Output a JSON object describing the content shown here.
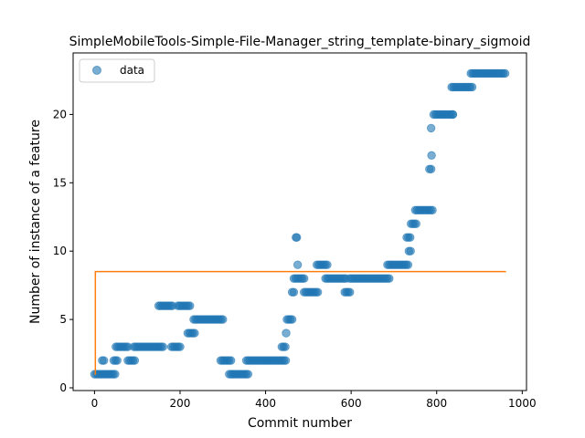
{
  "chart_data": {
    "type": "scatter",
    "title": "SimpleMobileTools-Simple-File-Manager_string_template-binary_sigmoid",
    "xlabel": "Commit number",
    "ylabel": "Number of instance of a feature",
    "xlim": [
      -50,
      1010
    ],
    "ylim": [
      -0.2,
      24.5
    ],
    "xticks": [
      0,
      200,
      400,
      600,
      800,
      1000
    ],
    "yticks": [
      0,
      5,
      10,
      15,
      20
    ],
    "legend": {
      "placement": "top-left",
      "entries": [
        "data"
      ]
    },
    "series": [
      {
        "name": "data",
        "kind": "scatter",
        "color": "#1f77b4",
        "segments": [
          {
            "x0": 0,
            "x1": 50,
            "y": 1
          },
          {
            "x0": 18,
            "x1": 22,
            "y": 2
          },
          {
            "x0": 45,
            "x1": 55,
            "y": 2
          },
          {
            "x0": 50,
            "x1": 80,
            "y": 3
          },
          {
            "x0": 78,
            "x1": 95,
            "y": 2
          },
          {
            "x0": 92,
            "x1": 160,
            "y": 3
          },
          {
            "x0": 150,
            "x1": 185,
            "y": 6
          },
          {
            "x0": 180,
            "x1": 200,
            "y": 3
          },
          {
            "x0": 195,
            "x1": 225,
            "y": 6
          },
          {
            "x0": 218,
            "x1": 235,
            "y": 4
          },
          {
            "x0": 232,
            "x1": 300,
            "y": 5
          },
          {
            "x0": 295,
            "x1": 320,
            "y": 2
          },
          {
            "x0": 315,
            "x1": 360,
            "y": 1
          },
          {
            "x0": 355,
            "x1": 450,
            "y": 2
          },
          {
            "x0": 438,
            "x1": 448,
            "y": 3
          },
          {
            "x0": 450,
            "x1": 465,
            "y": 5
          },
          {
            "x0": 462,
            "x1": 468,
            "y": 7
          },
          {
            "x0": 466,
            "x1": 492,
            "y": 8
          },
          {
            "x0": 490,
            "x1": 525,
            "y": 7
          },
          {
            "x0": 520,
            "x1": 545,
            "y": 9
          },
          {
            "x0": 540,
            "x1": 590,
            "y": 8
          },
          {
            "x0": 585,
            "x1": 600,
            "y": 7
          },
          {
            "x0": 597,
            "x1": 690,
            "y": 8
          },
          {
            "x0": 685,
            "x1": 735,
            "y": 9
          },
          {
            "x0": 735,
            "x1": 742,
            "y": 10
          },
          {
            "x0": 730,
            "x1": 740,
            "y": 11
          },
          {
            "x0": 740,
            "x1": 755,
            "y": 12
          },
          {
            "x0": 750,
            "x1": 790,
            "y": 13
          },
          {
            "x0": 783,
            "x1": 790,
            "y": 16
          },
          {
            "x0": 793,
            "x1": 840,
            "y": 20
          },
          {
            "x0": 835,
            "x1": 885,
            "y": 22
          },
          {
            "x0": 880,
            "x1": 962,
            "y": 23
          }
        ],
        "extra_points": [
          {
            "x": 448,
            "y": 4
          },
          {
            "x": 471,
            "y": 11
          },
          {
            "x": 473,
            "y": 11
          },
          {
            "x": 475,
            "y": 9
          },
          {
            "x": 788,
            "y": 17
          },
          {
            "x": 787,
            "y": 19
          },
          {
            "x": 838,
            "y": 20
          }
        ]
      },
      {
        "name": "",
        "kind": "step",
        "color": "#ff7f0e",
        "x": [
          0,
          2,
          2,
          962
        ],
        "y": [
          1,
          1,
          8.5,
          8.5
        ]
      }
    ]
  }
}
